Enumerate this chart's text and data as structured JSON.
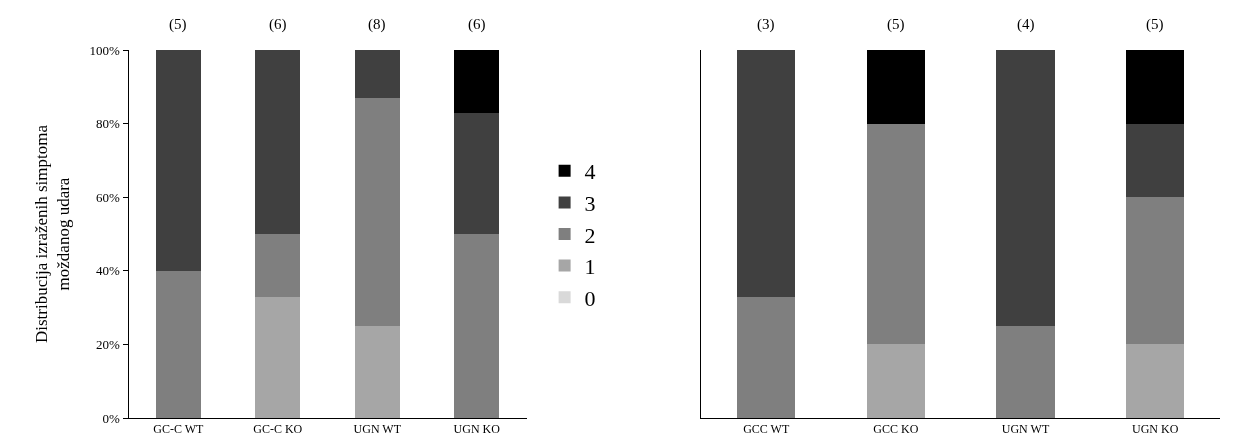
{
  "chart_data": [
    {
      "type": "bar",
      "stacked": true,
      "ylabel": "Distribucija izraženih simptoma moždanog udara",
      "categories": [
        "GC-C WT",
        "GC-C KO",
        "UGN WT",
        "UGN KO"
      ],
      "ylim": [
        0,
        100
      ],
      "yticks": [
        {
          "value": 0,
          "label": "0%"
        },
        {
          "value": 20,
          "label": "20%"
        },
        {
          "value": 40,
          "label": "40%"
        },
        {
          "value": 60,
          "label": "60%"
        },
        {
          "value": 80,
          "label": "80%"
        },
        {
          "value": 100,
          "label": "100%"
        }
      ],
      "legend": "right",
      "grid": false,
      "annotations": [
        "(5)",
        "(6)",
        "(8)",
        "(6)"
      ],
      "series": [
        {
          "name": "0",
          "color": "#d9d9d9",
          "values": [
            0,
            0,
            0,
            0
          ]
        },
        {
          "name": "1",
          "color": "#a6a6a6",
          "values": [
            0,
            33,
            25,
            0
          ]
        },
        {
          "name": "2",
          "color": "#7f7f7f",
          "values": [
            40,
            17,
            62,
            50
          ]
        },
        {
          "name": "3",
          "color": "#404040",
          "values": [
            60,
            50,
            13,
            33
          ]
        },
        {
          "name": "4",
          "color": "#000000",
          "values": [
            0,
            0,
            0,
            17
          ]
        }
      ]
    },
    {
      "type": "bar",
      "stacked": true,
      "categories": [
        "GCC WT",
        "GCC KO",
        "UGN WT",
        "UGN KO"
      ],
      "ylim": [
        0,
        100
      ],
      "tick_labels": "x",
      "grid": false,
      "annotations": [
        "(3)",
        "(5)",
        "(4)",
        "(5)"
      ],
      "series": [
        {
          "color": "#d9d9d9",
          "values": [
            0,
            0,
            0,
            0
          ]
        },
        {
          "color": "#a6a6a6",
          "values": [
            0,
            20,
            0,
            20
          ]
        },
        {
          "color": "#7f7f7f",
          "values": [
            33,
            60,
            25,
            40
          ]
        },
        {
          "color": "#404040",
          "values": [
            67,
            0,
            75,
            20
          ]
        },
        {
          "color": "#000000",
          "values": [
            0,
            20,
            0,
            20
          ]
        }
      ]
    }
  ]
}
